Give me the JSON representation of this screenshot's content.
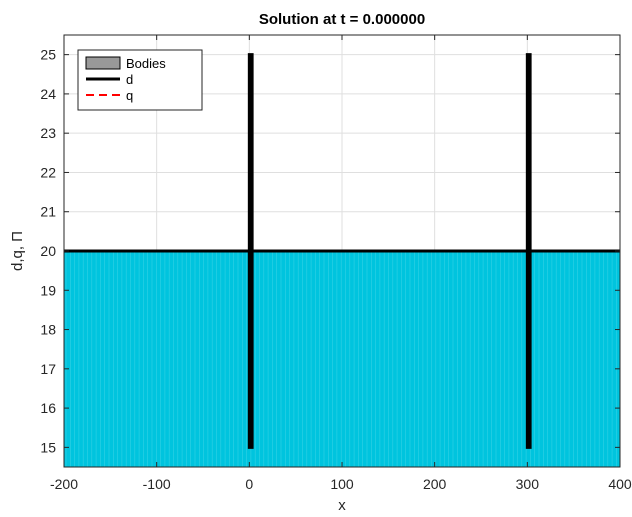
{
  "chart_data": {
    "type": "line",
    "title": "Solution at t = 0.000000",
    "xlabel": "x",
    "ylabel": "d,q, Π",
    "xlim": [
      -200,
      400
    ],
    "ylim": [
      14.5,
      25.5
    ],
    "xticks": [
      -200,
      -100,
      0,
      100,
      200,
      300,
      400
    ],
    "yticks": [
      15,
      16,
      17,
      18,
      19,
      20,
      21,
      22,
      23,
      24,
      25
    ],
    "grid": true,
    "legend_position": "top-left",
    "fill": {
      "color": "#00c4de",
      "from": 14.5,
      "to": 20
    },
    "bodies": [
      {
        "x": [
          0,
          3
        ],
        "y": [
          15,
          25
        ]
      },
      {
        "x": [
          300,
          303
        ],
        "y": [
          15,
          25
        ]
      }
    ],
    "series": [
      {
        "name": "Bodies",
        "color": "#999999",
        "style": "patch"
      },
      {
        "name": "d",
        "color": "#000000",
        "style": "solid",
        "x": [
          -200,
          400
        ],
        "y": [
          20,
          20
        ]
      },
      {
        "name": "q",
        "color": "#ff0000",
        "style": "dashed",
        "x": [],
        "y": []
      }
    ]
  }
}
